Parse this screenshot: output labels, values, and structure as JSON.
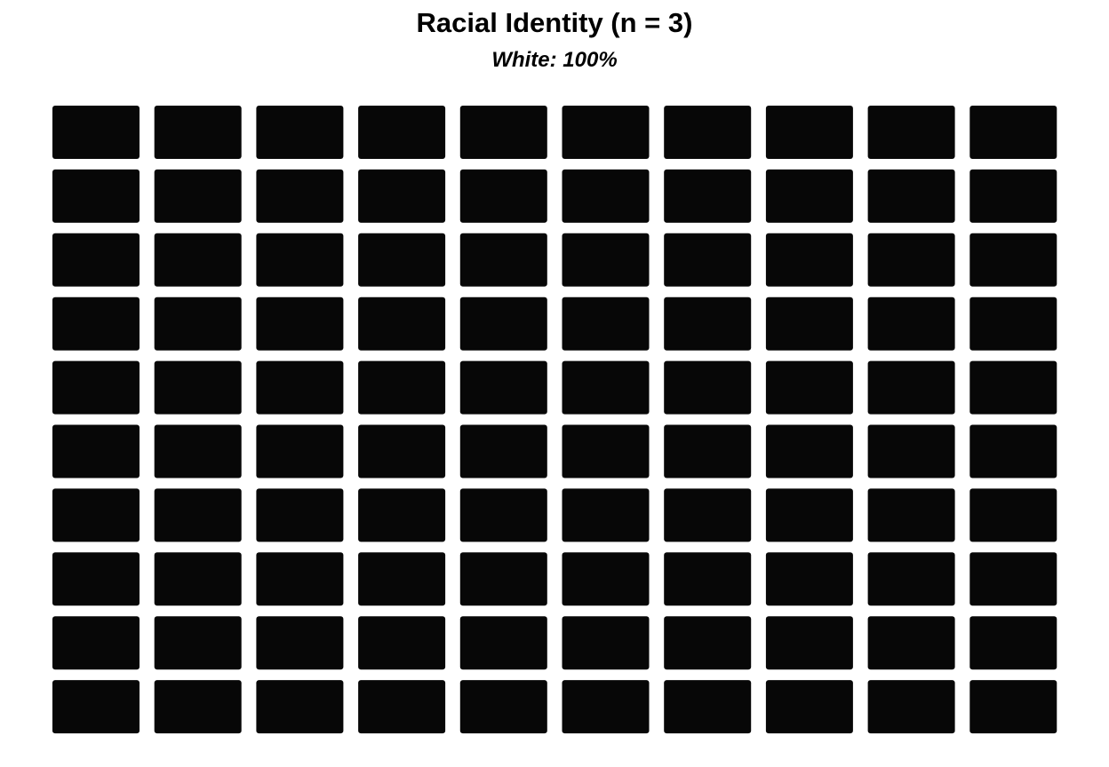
{
  "chart_data": {
    "type": "waffle",
    "title": "Racial Identity (n = 3)",
    "subtitle": "White: 100%",
    "grid": {
      "rows": 10,
      "cols": 10
    },
    "series": [
      {
        "category": "White",
        "percent": 100,
        "cells": 100,
        "color": "#070707"
      }
    ]
  }
}
